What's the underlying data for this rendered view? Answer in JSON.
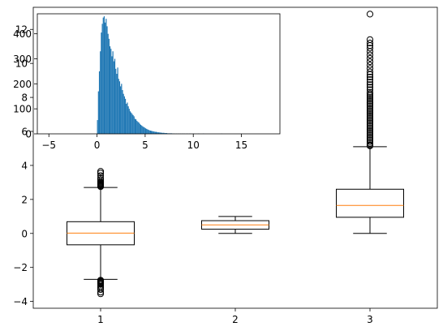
{
  "chart_data": [
    {
      "type": "boxplot",
      "title": "",
      "xlabel": "",
      "ylabel": "",
      "xlim": [
        0.5,
        3.5
      ],
      "ylim": [
        -4.4,
        13.3
      ],
      "x_ticks": [
        1,
        2,
        3
      ],
      "x_tick_labels": [
        "1",
        "2",
        "3"
      ],
      "y_ticks": [
        -4,
        -2,
        0,
        2,
        4,
        6,
        8,
        10,
        12
      ],
      "y_tick_labels": [
        "−4",
        "−2",
        "0",
        "2",
        "4",
        "6",
        "8",
        "10",
        "12"
      ],
      "grid": false,
      "box_color": "#000000",
      "median_color": "#ff7f0e",
      "boxes": [
        {
          "position": 1,
          "q1": -0.67,
          "median": 0.02,
          "q3": 0.69,
          "whisker_low": -2.7,
          "whisker_high": 2.7,
          "fliers": [
            2.75,
            2.8,
            2.85,
            2.9,
            2.95,
            3.0,
            3.05,
            3.15,
            3.25,
            3.4,
            3.55,
            3.65,
            -2.75,
            -2.8,
            -2.85,
            -2.9,
            -2.95,
            -3.0,
            -3.1,
            -3.2,
            -3.3,
            -3.45,
            -3.55
          ]
        },
        {
          "position": 2,
          "q1": 0.25,
          "median": 0.5,
          "q3": 0.75,
          "whisker_low": 0.0,
          "whisker_high": 1.0,
          "fliers": []
        },
        {
          "position": 3,
          "q1": 0.95,
          "median": 1.65,
          "q3": 2.6,
          "whisker_low": 0.0,
          "whisker_high": 5.1,
          "fliers": [
            5.15,
            5.2,
            5.3,
            5.4,
            5.5,
            5.6,
            5.7,
            5.8,
            5.9,
            6.0,
            6.1,
            6.2,
            6.3,
            6.4,
            6.5,
            6.6,
            6.7,
            6.8,
            6.9,
            7.0,
            7.1,
            7.2,
            7.3,
            7.4,
            7.5,
            7.6,
            7.7,
            7.8,
            7.9,
            8.0,
            8.1,
            8.2,
            8.3,
            8.45,
            8.6,
            8.75,
            8.9,
            9.05,
            9.2,
            9.35,
            9.5,
            9.7,
            9.9,
            10.1,
            10.3,
            10.5,
            10.7,
            10.9,
            11.05,
            11.2,
            11.4,
            12.9
          ]
        }
      ]
    },
    {
      "type": "bar",
      "title": "",
      "xlabel": "",
      "ylabel": "",
      "xlim": [
        -6.2,
        19.0
      ],
      "ylim": [
        0,
        480
      ],
      "x_ticks": [
        -5,
        0,
        5,
        10,
        15
      ],
      "x_tick_labels": [
        "−5",
        "0",
        "5",
        "10",
        "15"
      ],
      "y_ticks": [
        0,
        100,
        200,
        300,
        400
      ],
      "y_tick_labels": [
        "0",
        "100",
        "200",
        "300",
        "400"
      ],
      "grid": false,
      "bar_color": "#1f77b4",
      "bin_width": 0.1,
      "x": [
        0.0,
        0.1,
        0.2,
        0.3,
        0.4,
        0.5,
        0.6,
        0.7,
        0.8,
        0.9,
        1.0,
        1.1,
        1.2,
        1.3,
        1.4,
        1.5,
        1.6,
        1.7,
        1.8,
        1.9,
        2.0,
        2.1,
        2.2,
        2.3,
        2.4,
        2.5,
        2.6,
        2.7,
        2.8,
        2.9,
        3.0,
        3.1,
        3.2,
        3.3,
        3.4,
        3.5,
        3.6,
        3.7,
        3.8,
        3.9,
        4.0,
        4.1,
        4.2,
        4.3,
        4.4,
        4.5,
        4.6,
        4.7,
        4.8,
        4.9,
        5.0,
        5.1,
        5.2,
        5.3,
        5.4,
        5.5,
        5.6,
        5.7,
        5.8,
        5.9,
        6.0,
        6.1,
        6.2,
        6.3,
        6.4,
        6.5,
        6.6,
        6.7,
        6.8,
        6.9,
        7.0,
        7.1,
        7.2,
        7.3,
        7.4,
        7.5,
        7.6,
        7.7,
        7.8,
        7.9,
        8.0,
        8.2,
        8.4,
        8.6,
        8.8,
        9.0,
        9.3,
        9.6,
        10.0,
        10.5,
        11.0,
        12.9
      ],
      "values": [
        55,
        170,
        250,
        330,
        405,
        440,
        465,
        470,
        445,
        460,
        430,
        400,
        380,
        350,
        340,
        310,
        330,
        290,
        300,
        260,
        240,
        265,
        220,
        210,
        190,
        200,
        175,
        160,
        150,
        140,
        120,
        125,
        110,
        100,
        90,
        85,
        80,
        75,
        70,
        60,
        58,
        52,
        48,
        45,
        40,
        36,
        33,
        30,
        27,
        25,
        22,
        20,
        18,
        16,
        14,
        13,
        12,
        11,
        10,
        9,
        8,
        8,
        7,
        6,
        6,
        5,
        5,
        4,
        4,
        4,
        3,
        3,
        3,
        2,
        2,
        2,
        2,
        2,
        1,
        1,
        1,
        1,
        1,
        1,
        1,
        1,
        1,
        1,
        1,
        1,
        1,
        1
      ]
    }
  ]
}
